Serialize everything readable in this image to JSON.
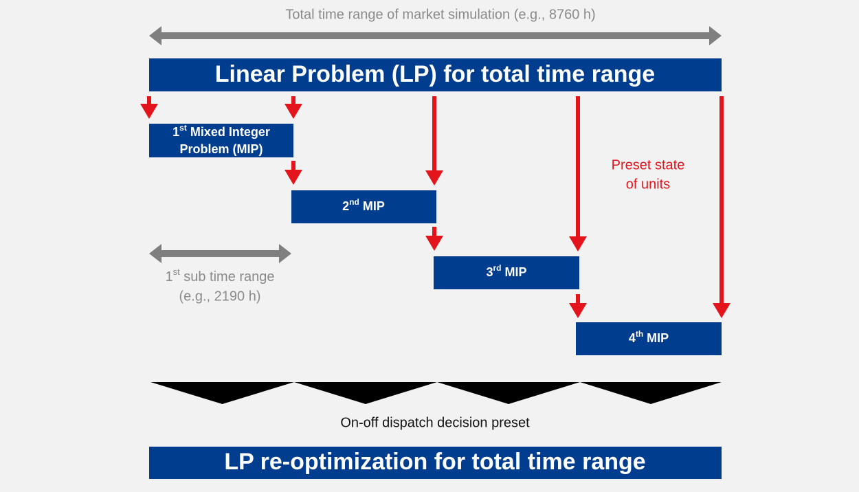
{
  "header": {
    "title": "Total time range of market simulation (e.g., 8760 h)"
  },
  "lp_box": {
    "label": "Linear Problem (LP) for total time range"
  },
  "mips": [
    {
      "ordinal": "1",
      "suffix": "st",
      "lines": [
        "Mixed Integer",
        "Problem (MIP)"
      ]
    },
    {
      "ordinal": "2",
      "suffix": "nd",
      "lines": [
        "MIP"
      ]
    },
    {
      "ordinal": "3",
      "suffix": "rd",
      "lines": [
        "MIP"
      ]
    },
    {
      "ordinal": "4",
      "suffix": "th",
      "lines": [
        "MIP"
      ]
    }
  ],
  "preset_note": {
    "lines": [
      "Preset state",
      "of units"
    ]
  },
  "sub_range": {
    "ordinal": "1",
    "suffix": "st",
    "lines": [
      "sub time range",
      "(e.g., 2190 h)"
    ]
  },
  "dispatch_label": "On-off dispatch decision preset",
  "reopt_box": {
    "label": "LP re-optimization for total time range"
  }
}
